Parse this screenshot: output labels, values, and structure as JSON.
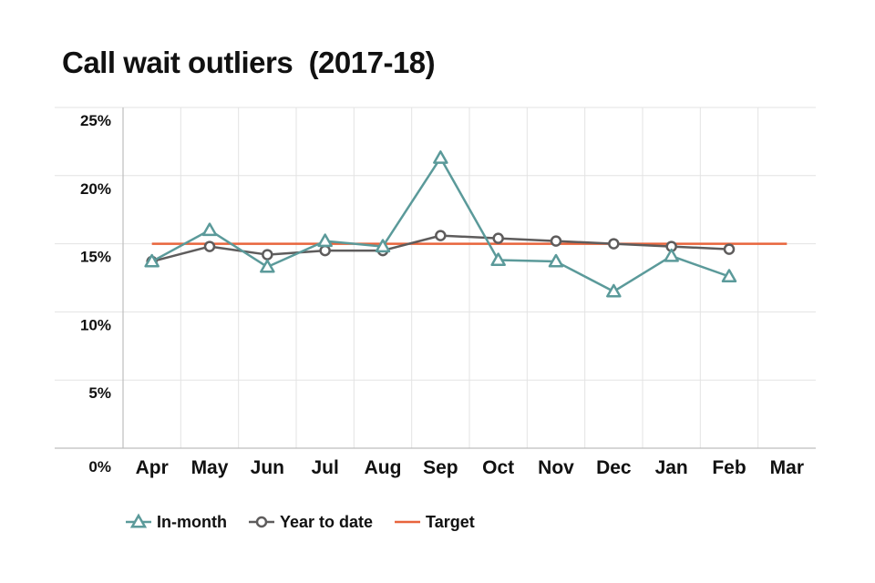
{
  "chart_data": {
    "type": "line",
    "title": "Call wait outliers  (2017-18)",
    "xlabel": "",
    "ylabel": "",
    "categories": [
      "Apr",
      "May",
      "Jun",
      "Jul",
      "Aug",
      "Sep",
      "Oct",
      "Nov",
      "Dec",
      "Jan",
      "Feb",
      "Mar"
    ],
    "y_ticks": [
      "0%",
      "5%",
      "10%",
      "15%",
      "20%",
      "25%"
    ],
    "ylim": [
      0,
      25
    ],
    "grid": true,
    "legend_position": "bottom-left",
    "series": [
      {
        "name": "In-month",
        "marker": "triangle",
        "color": "#5b9a9a",
        "values": [
          13.7,
          16.0,
          13.3,
          15.2,
          14.8,
          21.3,
          13.8,
          13.7,
          11.5,
          14.1,
          12.6,
          null
        ]
      },
      {
        "name": "Year to date",
        "marker": "circle",
        "color": "#5e5c5c",
        "values": [
          13.7,
          14.8,
          14.2,
          14.5,
          14.5,
          15.6,
          15.4,
          15.2,
          15.0,
          14.8,
          14.6,
          null
        ]
      },
      {
        "name": "Target",
        "marker": "none",
        "color": "#e8643c",
        "values": [
          15,
          15,
          15,
          15,
          15,
          15,
          15,
          15,
          15,
          15,
          15,
          15
        ]
      }
    ]
  }
}
